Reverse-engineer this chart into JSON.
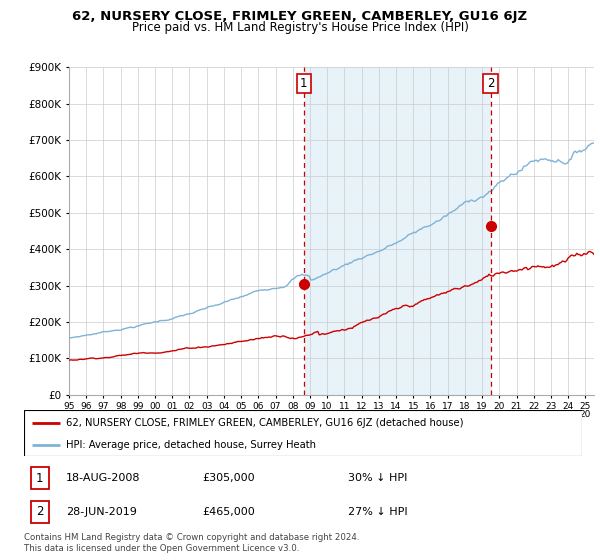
{
  "title": "62, NURSERY CLOSE, FRIMLEY GREEN, CAMBERLEY, GU16 6JZ",
  "subtitle": "Price paid vs. HM Land Registry's House Price Index (HPI)",
  "legend_line1": "62, NURSERY CLOSE, FRIMLEY GREEN, CAMBERLEY, GU16 6JZ (detached house)",
  "legend_line2": "HPI: Average price, detached house, Surrey Heath",
  "annotation1_date": "18-AUG-2008",
  "annotation1_price": "£305,000",
  "annotation1_pct": "30% ↓ HPI",
  "annotation2_date": "28-JUN-2019",
  "annotation2_price": "£465,000",
  "annotation2_pct": "27% ↓ HPI",
  "footer": "Contains HM Land Registry data © Crown copyright and database right 2024.\nThis data is licensed under the Open Government Licence v3.0.",
  "hpi_color": "#7eb3d8",
  "hpi_fill_color": "#daeaf5",
  "price_color": "#cc0000",
  "sale1_x": 2008.63,
  "sale1_y": 305000,
  "sale2_x": 2019.49,
  "sale2_y": 465000,
  "vline_color": "#cc0000",
  "ylim": [
    0,
    900000
  ],
  "xlim_start": 1995.0,
  "xlim_end": 2025.5,
  "ytick_labels": [
    "£0",
    "£100K",
    "£200K",
    "£300K",
    "£400K",
    "£500K",
    "£600K",
    "£700K",
    "£800K",
    "£900K"
  ],
  "ytick_values": [
    0,
    100000,
    200000,
    300000,
    400000,
    500000,
    600000,
    700000,
    800000,
    900000
  ],
  "xtick_years": [
    1995,
    1996,
    1997,
    1998,
    1999,
    2000,
    2001,
    2002,
    2003,
    2004,
    2005,
    2006,
    2007,
    2008,
    2009,
    2010,
    2011,
    2012,
    2013,
    2014,
    2015,
    2016,
    2017,
    2018,
    2019,
    2020,
    2021,
    2022,
    2023,
    2024,
    2025
  ]
}
